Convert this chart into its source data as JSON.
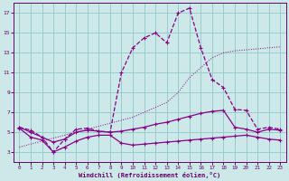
{
  "xlabel": "Windchill (Refroidissement éolien,°C)",
  "background_color": "#cce8e8",
  "grid_color": "#99cccc",
  "line_color": "#880088",
  "text_color": "#660066",
  "xlim": [
    -0.5,
    23.5
  ],
  "ylim": [
    2.0,
    18.0
  ],
  "yticks": [
    3,
    5,
    7,
    9,
    11,
    13,
    15,
    17
  ],
  "xticks": [
    0,
    1,
    2,
    3,
    4,
    5,
    6,
    7,
    8,
    9,
    10,
    11,
    12,
    13,
    14,
    15,
    16,
    17,
    18,
    19,
    20,
    21,
    22,
    23
  ],
  "line_peak_x": [
    0,
    1,
    2,
    3,
    4,
    5,
    6,
    7,
    8,
    9,
    10,
    11,
    12,
    13,
    14,
    15,
    16,
    17,
    18,
    19,
    20,
    21,
    22,
    23
  ],
  "line_peak_y": [
    5.5,
    5.2,
    4.5,
    3.0,
    4.3,
    5.3,
    5.4,
    5.1,
    5.0,
    11.0,
    13.5,
    14.5,
    15.0,
    14.0,
    17.0,
    17.5,
    13.5,
    10.3,
    9.5,
    7.3,
    7.2,
    5.3,
    5.5,
    5.3
  ],
  "line_diag_x": [
    0,
    1,
    2,
    3,
    4,
    5,
    6,
    7,
    8,
    9,
    10,
    11,
    12,
    13,
    14,
    15,
    16,
    17,
    18,
    19,
    20,
    21,
    22,
    23
  ],
  "line_diag_y": [
    3.5,
    3.8,
    4.1,
    4.4,
    4.7,
    5.0,
    5.3,
    5.6,
    5.9,
    6.2,
    6.5,
    7.0,
    7.5,
    8.0,
    9.0,
    10.5,
    11.5,
    12.5,
    13.0,
    13.2,
    13.3,
    13.4,
    13.5,
    13.6
  ],
  "line_mid_x": [
    0,
    1,
    2,
    3,
    4,
    5,
    6,
    7,
    8,
    9,
    10,
    11,
    12,
    13,
    14,
    15,
    16,
    17,
    18,
    19,
    20,
    21,
    22,
    23
  ],
  "line_mid_y": [
    5.5,
    5.0,
    4.5,
    4.0,
    4.3,
    5.0,
    5.2,
    5.1,
    5.0,
    5.1,
    5.3,
    5.5,
    5.8,
    6.0,
    6.3,
    6.6,
    6.9,
    7.1,
    7.2,
    5.5,
    5.3,
    5.0,
    5.3,
    5.2
  ],
  "line_bot_x": [
    0,
    1,
    2,
    3,
    4,
    5,
    6,
    7,
    8,
    9,
    10,
    11,
    12,
    13,
    14,
    15,
    16,
    17,
    18,
    19,
    20,
    21,
    22,
    23
  ],
  "line_bot_y": [
    5.4,
    4.5,
    4.2,
    3.0,
    3.5,
    4.1,
    4.5,
    4.7,
    4.7,
    3.9,
    3.7,
    3.8,
    3.9,
    4.0,
    4.1,
    4.2,
    4.3,
    4.4,
    4.5,
    4.6,
    4.7,
    4.5,
    4.3,
    4.2
  ]
}
